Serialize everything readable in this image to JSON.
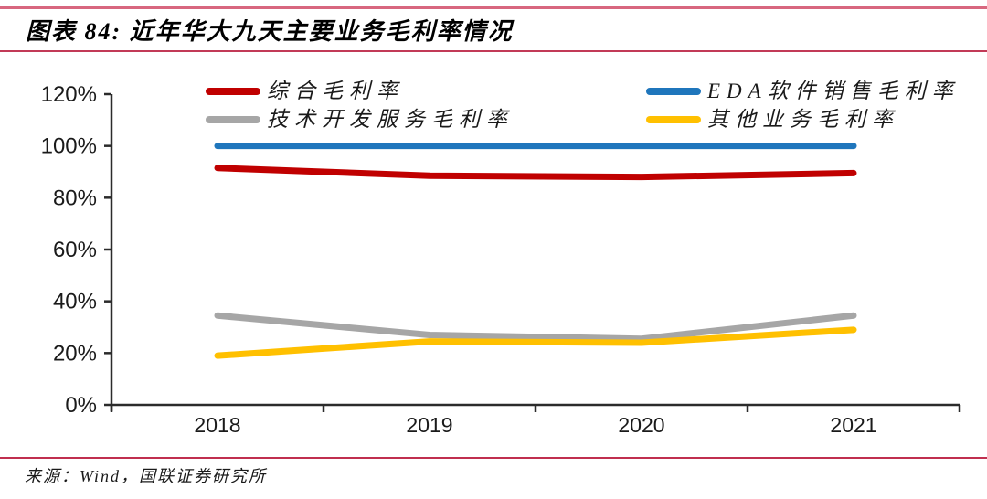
{
  "page": {
    "title": "图表 84:  近年华大九天主要业务毛利率情况",
    "source": "来源：Wind，国联证券研究所"
  },
  "colors": {
    "rule_top": "#D8677F",
    "rule_title": "#C23A57",
    "rule_bottom": "#C02F4F",
    "axis": "#2B2B2B",
    "text": "#1A1A1A"
  },
  "chart_data": {
    "type": "line",
    "title": "近年华大九天主要业务毛利率情况",
    "categories": [
      "2018",
      "2019",
      "2020",
      "2021"
    ],
    "series": [
      {
        "name": "综合毛利率",
        "color": "#C00000",
        "values": [
          91.5,
          88.5,
          88,
          89.5
        ]
      },
      {
        "name": "EDA软件销售毛利率",
        "color": "#1F76BC",
        "values": [
          100,
          100,
          100,
          100
        ]
      },
      {
        "name": "技术开发服务毛利率",
        "color": "#A6A6A6",
        "values": [
          34.5,
          27,
          25.5,
          34.5
        ]
      },
      {
        "name": "其他业务毛利率",
        "color": "#FFC000",
        "values": [
          19,
          24.5,
          24,
          29
        ]
      }
    ],
    "xlabel": "",
    "ylabel": "",
    "ylim": [
      0,
      120
    ],
    "y_tick_step": 20,
    "y_tick_suffix": "%",
    "grid": false,
    "legend_position": "top"
  }
}
